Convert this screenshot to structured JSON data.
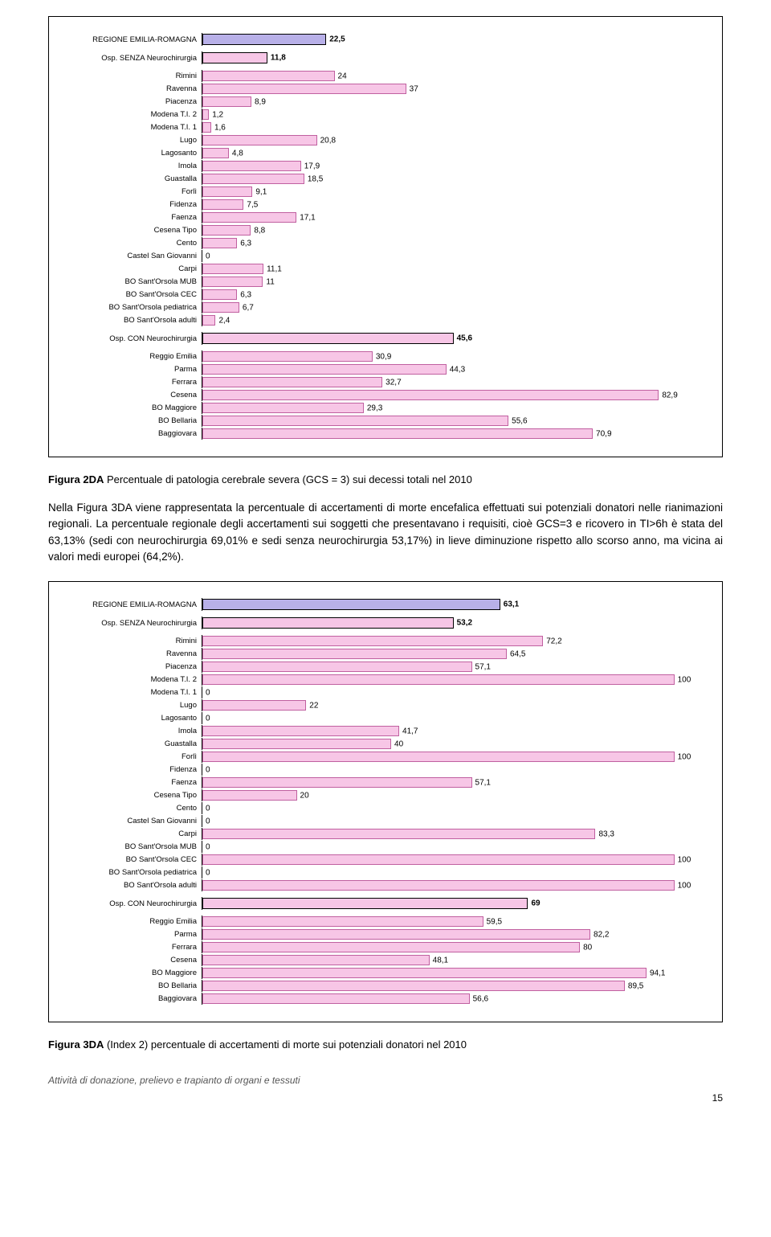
{
  "chart1": {
    "max_value": 90,
    "groups": [
      {
        "kind": "header",
        "label": "REGIONE EMILIA-ROMAGNA",
        "value": 22.5,
        "value_text": "22,5",
        "color": "#b8b0e8",
        "border": "#000"
      },
      {
        "kind": "spacer"
      },
      {
        "kind": "header",
        "label": "Osp. SENZA Neurochirurgia",
        "value": 11.8,
        "value_text": "11,8",
        "color": "#f7c6e6",
        "border": "#000"
      },
      {
        "kind": "spacer"
      },
      {
        "kind": "row",
        "label": "Rimini",
        "value": 24,
        "value_text": "24",
        "color": "#f7c6e6"
      },
      {
        "kind": "row",
        "label": "Ravenna",
        "value": 37,
        "value_text": "37",
        "color": "#f7c6e6"
      },
      {
        "kind": "row",
        "label": "Piacenza",
        "value": 8.9,
        "value_text": "8,9",
        "color": "#f7c6e6"
      },
      {
        "kind": "row",
        "label": "Modena T.I. 2",
        "value": 1.2,
        "value_text": "1,2",
        "color": "#f7c6e6"
      },
      {
        "kind": "row",
        "label": "Modena T.I. 1",
        "value": 1.6,
        "value_text": "1,6",
        "color": "#f7c6e6"
      },
      {
        "kind": "row",
        "label": "Lugo",
        "value": 20.8,
        "value_text": "20,8",
        "color": "#f7c6e6"
      },
      {
        "kind": "row",
        "label": "Lagosanto",
        "value": 4.8,
        "value_text": "4,8",
        "color": "#f7c6e6"
      },
      {
        "kind": "row",
        "label": "Imola",
        "value": 17.9,
        "value_text": "17,9",
        "color": "#f7c6e6"
      },
      {
        "kind": "row",
        "label": "Guastalla",
        "value": 18.5,
        "value_text": "18,5",
        "color": "#f7c6e6"
      },
      {
        "kind": "row",
        "label": "Forlì",
        "value": 9.1,
        "value_text": "9,1",
        "color": "#f7c6e6"
      },
      {
        "kind": "row",
        "label": "Fidenza",
        "value": 7.5,
        "value_text": "7,5",
        "color": "#f7c6e6"
      },
      {
        "kind": "row",
        "label": "Faenza",
        "value": 17.1,
        "value_text": "17,1",
        "color": "#f7c6e6"
      },
      {
        "kind": "row",
        "label": "Cesena Tipo",
        "value": 8.8,
        "value_text": "8,8",
        "color": "#f7c6e6"
      },
      {
        "kind": "row",
        "label": "Cento",
        "value": 6.3,
        "value_text": "6,3",
        "color": "#f7c6e6"
      },
      {
        "kind": "row",
        "label": "Castel San Giovanni",
        "value": 0,
        "value_text": "0",
        "color": "#f7c6e6"
      },
      {
        "kind": "row",
        "label": "Carpi",
        "value": 11.1,
        "value_text": "11,1",
        "color": "#f7c6e6"
      },
      {
        "kind": "row",
        "label": "BO Sant'Orsola MUB",
        "value": 11,
        "value_text": "11",
        "color": "#f7c6e6"
      },
      {
        "kind": "row",
        "label": "BO Sant'Orsola CEC",
        "value": 6.3,
        "value_text": "6,3",
        "color": "#f7c6e6"
      },
      {
        "kind": "row",
        "label": "BO Sant'Orsola pediatrica",
        "value": 6.7,
        "value_text": "6,7",
        "color": "#f7c6e6"
      },
      {
        "kind": "row",
        "label": "BO Sant'Orsola adulti",
        "value": 2.4,
        "value_text": "2,4",
        "color": "#f7c6e6"
      },
      {
        "kind": "spacer"
      },
      {
        "kind": "header",
        "label": "Osp. CON Neurochirurgia",
        "value": 45.6,
        "value_text": "45,6",
        "color": "#f7c6e6",
        "border": "#000"
      },
      {
        "kind": "spacer"
      },
      {
        "kind": "row",
        "label": "Reggio Emilia",
        "value": 30.9,
        "value_text": "30,9",
        "color": "#f7c6e6"
      },
      {
        "kind": "row",
        "label": "Parma",
        "value": 44.3,
        "value_text": "44,3",
        "color": "#f7c6e6"
      },
      {
        "kind": "row",
        "label": "Ferrara",
        "value": 32.7,
        "value_text": "32,7",
        "color": "#f7c6e6"
      },
      {
        "kind": "row",
        "label": "Cesena",
        "value": 82.9,
        "value_text": "82,9",
        "color": "#f7c6e6"
      },
      {
        "kind": "row",
        "label": "BO Maggiore",
        "value": 29.3,
        "value_text": "29,3",
        "color": "#f7c6e6"
      },
      {
        "kind": "row",
        "label": "BO Bellaria",
        "value": 55.6,
        "value_text": "55,6",
        "color": "#f7c6e6"
      },
      {
        "kind": "row",
        "label": "Baggiovara",
        "value": 70.9,
        "value_text": "70,9",
        "color": "#f7c6e6"
      }
    ]
  },
  "caption1_fig": "Figura 2DA",
  "caption1_text": " Percentuale di patologia cerebrale severa (GCS = 3) sui decessi totali nel 2010",
  "paragraph": "Nella Figura 3DA viene rappresentata la percentuale di accertamenti di morte encefalica effettuati sui potenziali donatori nelle rianimazioni regionali. La percentuale regionale degli accertamenti sui soggetti che presentavano i requisiti, cioè GCS=3 e ricovero in TI>6h è stata del 63,13% (sedi con neurochirurgia 69,01% e sedi senza neurochirurgia 53,17%) in lieve diminuzione rispetto allo scorso anno, ma vicina ai valori medi europei (64,2%).",
  "chart2": {
    "max_value": 105,
    "groups": [
      {
        "kind": "header",
        "label": "REGIONE EMILIA-ROMAGNA",
        "value": 63.1,
        "value_text": "63,1",
        "color": "#b8b0e8",
        "border": "#000"
      },
      {
        "kind": "spacer"
      },
      {
        "kind": "header",
        "label": "Osp. SENZA Neurochirurgia",
        "value": 53.2,
        "value_text": "53,2",
        "color": "#f7c6e6",
        "border": "#000"
      },
      {
        "kind": "spacer"
      },
      {
        "kind": "row",
        "label": "Rimini",
        "value": 72.2,
        "value_text": "72,2",
        "color": "#f7c6e6"
      },
      {
        "kind": "row",
        "label": "Ravenna",
        "value": 64.5,
        "value_text": "64,5",
        "color": "#f7c6e6"
      },
      {
        "kind": "row",
        "label": "Piacenza",
        "value": 57.1,
        "value_text": "57,1",
        "color": "#f7c6e6"
      },
      {
        "kind": "row",
        "label": "Modena T.I. 2",
        "value": 100,
        "value_text": "100",
        "color": "#f7c6e6"
      },
      {
        "kind": "row",
        "label": "Modena T.I. 1",
        "value": 0,
        "value_text": "0",
        "color": "#f7c6e6"
      },
      {
        "kind": "row",
        "label": "Lugo",
        "value": 22,
        "value_text": "22",
        "color": "#f7c6e6"
      },
      {
        "kind": "row",
        "label": "Lagosanto",
        "value": 0,
        "value_text": "0",
        "color": "#f7c6e6"
      },
      {
        "kind": "row",
        "label": "Imola",
        "value": 41.7,
        "value_text": "41,7",
        "color": "#f7c6e6"
      },
      {
        "kind": "row",
        "label": "Guastalla",
        "value": 40,
        "value_text": "40",
        "color": "#f7c6e6"
      },
      {
        "kind": "row",
        "label": "Forlì",
        "value": 100,
        "value_text": "100",
        "color": "#f7c6e6"
      },
      {
        "kind": "row",
        "label": "Fidenza",
        "value": 0,
        "value_text": "0",
        "color": "#f7c6e6"
      },
      {
        "kind": "row",
        "label": "Faenza",
        "value": 57.1,
        "value_text": "57,1",
        "color": "#f7c6e6"
      },
      {
        "kind": "row",
        "label": "Cesena Tipo",
        "value": 20,
        "value_text": "20",
        "color": "#f7c6e6"
      },
      {
        "kind": "row",
        "label": "Cento",
        "value": 0,
        "value_text": "0",
        "color": "#f7c6e6"
      },
      {
        "kind": "row",
        "label": "Castel San Giovanni",
        "value": 0,
        "value_text": "0",
        "color": "#f7c6e6"
      },
      {
        "kind": "row",
        "label": "Carpi",
        "value": 83.3,
        "value_text": "83,3",
        "color": "#f7c6e6"
      },
      {
        "kind": "row",
        "label": "BO Sant'Orsola MUB",
        "value": 0,
        "value_text": "0",
        "color": "#f7c6e6"
      },
      {
        "kind": "row",
        "label": "BO Sant'Orsola CEC",
        "value": 100,
        "value_text": "100",
        "color": "#f7c6e6"
      },
      {
        "kind": "row",
        "label": "BO Sant'Orsola pediatrica",
        "value": 0,
        "value_text": "0",
        "color": "#f7c6e6"
      },
      {
        "kind": "row",
        "label": "BO Sant'Orsola adulti",
        "value": 100,
        "value_text": "100",
        "color": "#f7c6e6"
      },
      {
        "kind": "spacer"
      },
      {
        "kind": "header",
        "label": "Osp. CON Neurochirurgia",
        "value": 69,
        "value_text": "69",
        "color": "#f7c6e6",
        "border": "#000"
      },
      {
        "kind": "spacer"
      },
      {
        "kind": "row",
        "label": "Reggio Emilia",
        "value": 59.5,
        "value_text": "59,5",
        "color": "#f7c6e6"
      },
      {
        "kind": "row",
        "label": "Parma",
        "value": 82.2,
        "value_text": "82,2",
        "color": "#f7c6e6"
      },
      {
        "kind": "row",
        "label": "Ferrara",
        "value": 80,
        "value_text": "80",
        "color": "#f7c6e6"
      },
      {
        "kind": "row",
        "label": "Cesena",
        "value": 48.1,
        "value_text": "48,1",
        "color": "#f7c6e6"
      },
      {
        "kind": "row",
        "label": "BO Maggiore",
        "value": 94.1,
        "value_text": "94,1",
        "color": "#f7c6e6"
      },
      {
        "kind": "row",
        "label": "BO Bellaria",
        "value": 89.5,
        "value_text": "89,5",
        "color": "#f7c6e6"
      },
      {
        "kind": "row",
        "label": "Baggiovara",
        "value": 56.6,
        "value_text": "56,6",
        "color": "#f7c6e6"
      }
    ]
  },
  "caption2_fig": "Figura 3DA",
  "caption2_text": " (Index 2) percentuale di accertamenti di morte sui potenziali donatori nel 2010",
  "footer": "Attività di donazione, prelievo e trapianto di organi e tessuti",
  "page_number": "15"
}
